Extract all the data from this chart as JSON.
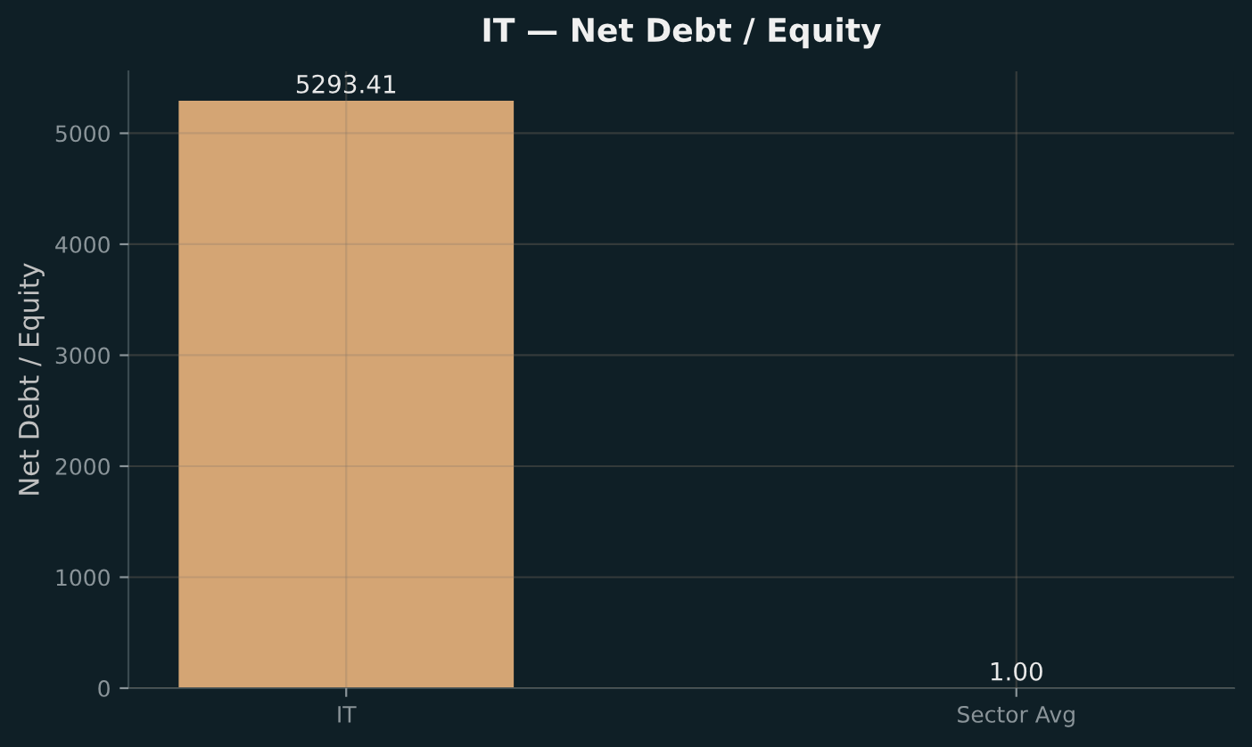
{
  "chart_data": {
    "type": "bar",
    "title": "IT — Net Debt / Equity",
    "ylabel": "Net Debt / Equity",
    "categories": [
      "IT",
      "Sector Avg"
    ],
    "values": [
      5293.41,
      1.0
    ],
    "colors": [
      "#d4a574",
      "#6b8a99"
    ],
    "value_labels": [
      "5293.41",
      "1.00"
    ],
    "ylim": [
      0,
      5558
    ],
    "yticks": [
      0,
      1000,
      2000,
      3000,
      4000,
      5000
    ],
    "grid": true
  }
}
